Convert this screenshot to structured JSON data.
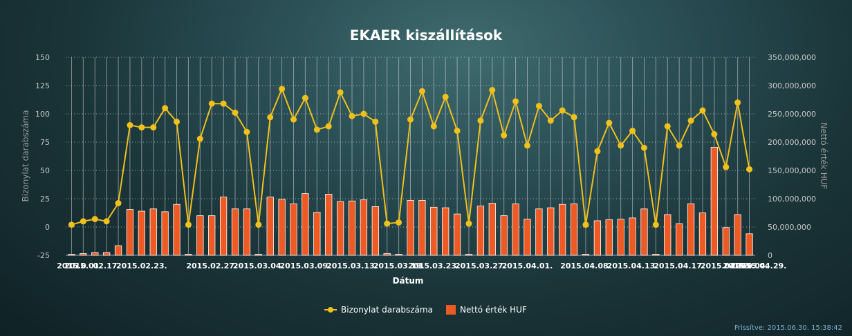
{
  "footer": {
    "refresh_label": "Frissítve: 2015.06.30. 15:38:42"
  },
  "colors": {
    "line": "#f0c01c",
    "bar": "#ee5a24",
    "bar_stroke": "#ffffff"
  },
  "chart_data": {
    "type": "bar+line",
    "title": "EKAER kiszállítások",
    "xlabel": "Dátum",
    "ylabel_left": "Bizonylat darabszáma",
    "ylabel_right": "Nettó érték HUF",
    "ylim_left": [
      -25,
      150
    ],
    "ylim_right": [
      0,
      350000000
    ],
    "yticks_left": [
      -25,
      0,
      25,
      50,
      75,
      100,
      125,
      150
    ],
    "yticks_right": [
      "0",
      "50,000,000",
      "100,000,000",
      "150,000,000",
      "200,000,000",
      "250,000,000",
      "300,000,000",
      "350,000,000"
    ],
    "xtick_labels": [
      "2015.0",
      "2015.01.",
      "02.17.",
      "2015.02.23.",
      "2015.02.27.",
      "2015.03.04.",
      "2015.03.09.",
      "2015.03.13.",
      "2015.03.19.",
      "2015.03.23.",
      "2015.03.27.",
      "2015.04.01.",
      "2015.04.08.",
      "2015.04.13.",
      "2015.04.17.",
      "2015.04.22.",
      "2015.0",
      "2015.04.",
      "2015.04.29."
    ],
    "xtick_positions": [
      0,
      1,
      3,
      6,
      12,
      16,
      20,
      24,
      28,
      31,
      35,
      39,
      44,
      48,
      52,
      56,
      57,
      58,
      59
    ],
    "grid": true,
    "legend": "bottom-center",
    "series": [
      {
        "name": "Bizonylat darabszáma",
        "type": "line",
        "axis": "left",
        "values": [
          2,
          5,
          7,
          5,
          21,
          90,
          88,
          88,
          105,
          93,
          2,
          78,
          109,
          109,
          101,
          84,
          2,
          97,
          122,
          95,
          114,
          86,
          89,
          119,
          98,
          100,
          93,
          3,
          4,
          95,
          120,
          89,
          115,
          85,
          3,
          94,
          121,
          81,
          111,
          72,
          107,
          94,
          103,
          97,
          2,
          67,
          92,
          72,
          85,
          70,
          2,
          89,
          72,
          94,
          103,
          82,
          53,
          110,
          51
        ]
      },
      {
        "name": "Nettó érték HUF",
        "type": "bar",
        "axis": "right",
        "values": [
          0,
          3000000,
          5000000,
          5000000,
          17000000,
          81000000,
          78000000,
          82000000,
          77000000,
          90000000,
          0,
          70000000,
          70000000,
          103000000,
          82000000,
          82000000,
          0,
          103000000,
          99000000,
          91000000,
          109000000,
          76000000,
          108000000,
          95000000,
          96000000,
          98000000,
          86000000,
          3000000,
          0,
          97000000,
          97000000,
          85000000,
          84000000,
          73000000,
          0,
          87000000,
          92000000,
          70000000,
          91000000,
          64000000,
          82000000,
          84000000,
          90000000,
          91000000,
          0,
          61000000,
          63000000,
          64000000,
          66000000,
          82000000,
          0,
          72000000,
          56000000,
          91000000,
          75000000,
          191000000,
          49000000,
          72000000,
          38000000
        ]
      }
    ]
  }
}
